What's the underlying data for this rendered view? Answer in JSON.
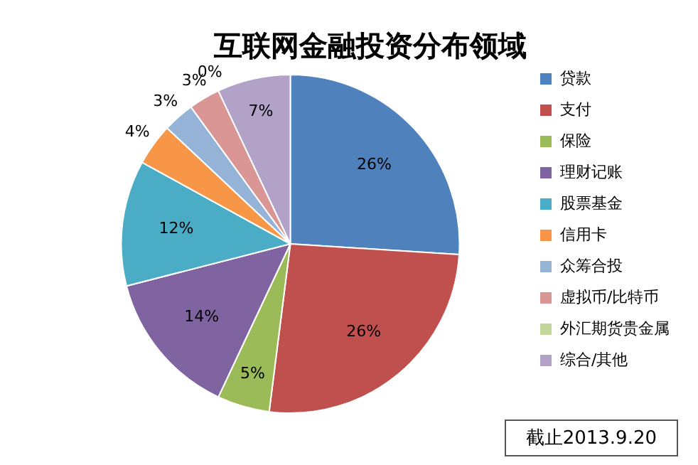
{
  "chart_data": {
    "type": "pie",
    "title": "互联网金融投资分布领域",
    "categories": [
      "贷款",
      "支付",
      "保险",
      "理财记账",
      "股票基金",
      "信用卡",
      "众筹合投",
      "虚拟币/比特币",
      "外汇期货贵金属",
      "综合/其他"
    ],
    "values": [
      26,
      26,
      5,
      14,
      12,
      4,
      3,
      3,
      0,
      7
    ],
    "value_labels": [
      "26%",
      "26%",
      "5%",
      "14%",
      "12%",
      "4%",
      "3%",
      "3%",
      "0%",
      "7%"
    ],
    "colors": [
      "#4f81bd",
      "#c0504d",
      "#9bbb59",
      "#8064a2",
      "#4bacc6",
      "#f79646",
      "#95b3d7",
      "#d99694",
      "#c3d69b",
      "#b2a2c7"
    ],
    "legend": "right",
    "annotations": [
      "截止2013.9.20"
    ]
  }
}
